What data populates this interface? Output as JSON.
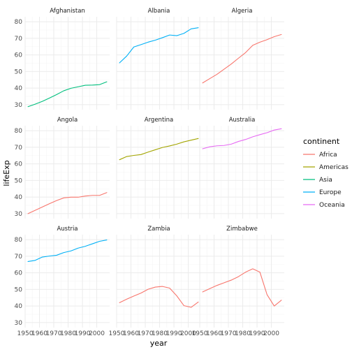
{
  "chart_data": {
    "type": "line",
    "facet_by": "country",
    "xlabel": "year",
    "ylabel": "lifeExp",
    "xlim": [
      1950,
      2009
    ],
    "ylim": [
      27,
      83
    ],
    "x_ticks": [
      1950,
      1960,
      1970,
      1980,
      1990,
      2000
    ],
    "x_tick_labels": [
      "1950",
      "1960",
      "1970",
      "1980",
      "1990",
      "2000"
    ],
    "y_ticks": [
      30,
      40,
      50,
      60,
      70,
      80
    ],
    "y_tick_labels": [
      "30",
      "40",
      "50",
      "60",
      "70",
      "80"
    ],
    "grid": true,
    "legend": {
      "title": "continent",
      "position": "right",
      "entries": [
        {
          "name": "Africa",
          "color": "#F8766D"
        },
        {
          "name": "Americas",
          "color": "#A3A500"
        },
        {
          "name": "Asia",
          "color": "#00BF7D"
        },
        {
          "name": "Europe",
          "color": "#00B0F6"
        },
        {
          "name": "Oceania",
          "color": "#E76BF3"
        }
      ]
    },
    "x": [
      1952,
      1957,
      1962,
      1967,
      1972,
      1977,
      1982,
      1987,
      1992,
      1997,
      2002,
      2007
    ],
    "facets": [
      {
        "country": "Afghanistan",
        "continent": "Asia",
        "values": [
          28.8,
          30.3,
          32.0,
          34.0,
          36.1,
          38.4,
          39.9,
          40.8,
          41.7,
          41.8,
          42.1,
          43.8
        ]
      },
      {
        "country": "Albania",
        "continent": "Europe",
        "values": [
          55.2,
          59.3,
          64.8,
          66.2,
          67.7,
          68.9,
          70.4,
          72.0,
          71.6,
          73.0,
          75.7,
          76.4
        ]
      },
      {
        "country": "Algeria",
        "continent": "Africa",
        "values": [
          43.1,
          45.7,
          48.3,
          51.4,
          54.5,
          58.0,
          61.4,
          65.8,
          67.7,
          69.2,
          71.0,
          72.3
        ]
      },
      {
        "country": "Angola",
        "continent": "Africa",
        "values": [
          30.0,
          32.0,
          34.0,
          36.0,
          37.9,
          39.5,
          39.9,
          39.9,
          40.6,
          41.0,
          41.0,
          42.7
        ]
      },
      {
        "country": "Argentina",
        "continent": "Americas",
        "values": [
          62.5,
          64.4,
          65.1,
          65.6,
          67.1,
          68.5,
          69.9,
          70.8,
          71.9,
          73.3,
          74.3,
          75.3
        ]
      },
      {
        "country": "Australia",
        "continent": "Oceania",
        "values": [
          69.1,
          70.3,
          70.9,
          71.1,
          71.9,
          73.5,
          74.7,
          76.3,
          77.6,
          78.8,
          80.4,
          81.2
        ]
      },
      {
        "country": "Austria",
        "continent": "Europe",
        "values": [
          66.8,
          67.5,
          69.5,
          70.1,
          70.6,
          72.2,
          73.2,
          74.9,
          76.0,
          77.5,
          79.0,
          79.8
        ]
      },
      {
        "country": "Zambia",
        "continent": "Africa",
        "values": [
          42.0,
          44.1,
          46.0,
          47.8,
          50.1,
          51.4,
          51.8,
          50.8,
          46.1,
          40.2,
          39.2,
          42.4
        ]
      },
      {
        "country": "Zimbabwe",
        "continent": "Africa",
        "values": [
          48.5,
          50.5,
          52.4,
          54.0,
          55.6,
          57.7,
          60.4,
          62.4,
          60.4,
          46.8,
          39.99,
          43.5
        ]
      }
    ]
  }
}
